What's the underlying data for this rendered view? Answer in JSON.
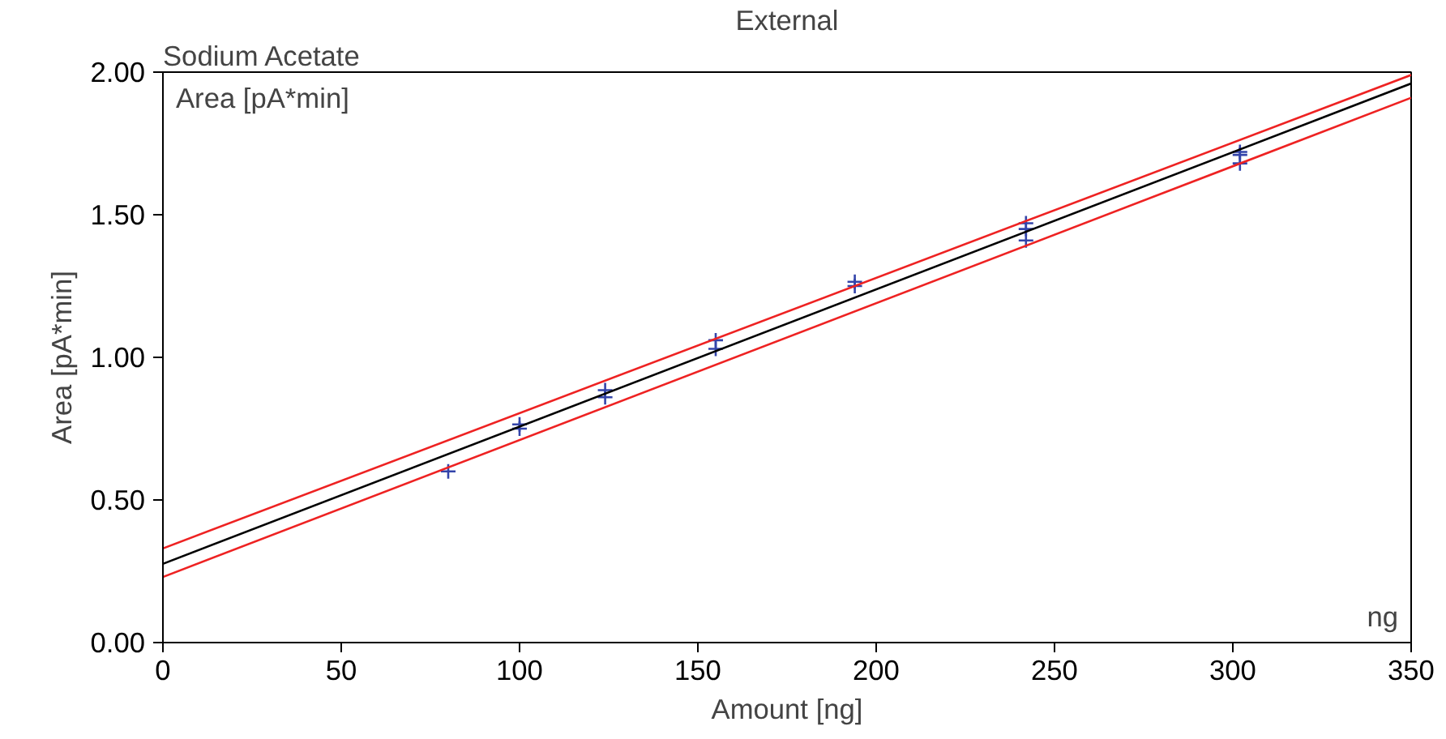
{
  "chart_data": {
    "type": "scatter",
    "title": "External",
    "xlabel": "Amount [ng]",
    "ylabel": "Area [pA*min]",
    "annotations": [
      "Sodium Acetate",
      "Area [pA*min]",
      "ng"
    ],
    "xlim": [
      0,
      350
    ],
    "ylim": [
      0,
      2.0
    ],
    "xticks": [
      0,
      50,
      100,
      150,
      200,
      250,
      300,
      350
    ],
    "yticks": [
      {
        "value": 0,
        "label": "0.00"
      },
      {
        "value": 0.5,
        "label": "0.50"
      },
      {
        "value": 1.0,
        "label": "1.00"
      },
      {
        "value": 1.5,
        "label": "1.50"
      },
      {
        "value": 2.0,
        "label": "2.00"
      }
    ],
    "grid": false,
    "series": [
      {
        "marker": "cross",
        "color": "#3344aa",
        "x": [
          80,
          100,
          100,
          124,
          124,
          155,
          155,
          194,
          194,
          242,
          242,
          242,
          302,
          302,
          302
        ],
        "values": [
          0.6,
          0.765,
          0.75,
          0.885,
          0.86,
          1.06,
          1.03,
          1.265,
          1.25,
          1.47,
          1.45,
          1.41,
          1.72,
          1.71,
          1.68
        ]
      },
      {
        "type": "line",
        "color": "#000000",
        "x": [
          0,
          350
        ],
        "values": [
          0.276,
          1.96
        ]
      },
      {
        "type": "line",
        "color": "#ee2222",
        "x": [
          0,
          350
        ],
        "values": [
          0.33,
          1.99
        ]
      },
      {
        "type": "line",
        "color": "#ee2222",
        "x": [
          0,
          350
        ],
        "values": [
          0.23,
          1.91
        ]
      }
    ]
  }
}
